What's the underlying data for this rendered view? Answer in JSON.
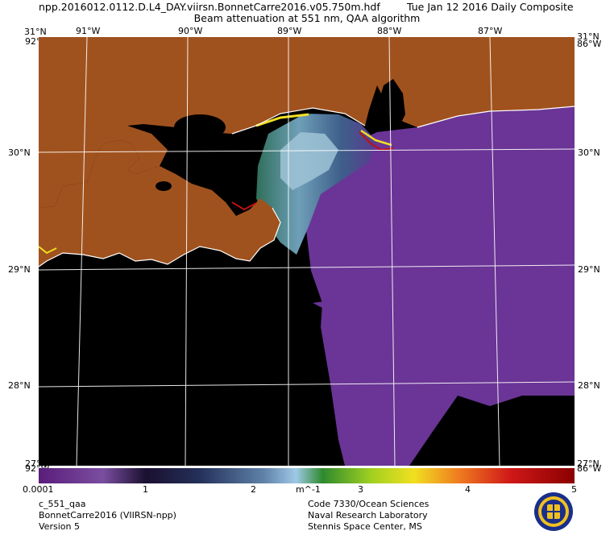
{
  "header": {
    "filename": "npp.2016012.0112.D.L4_DAY.viirsn.BonnetCarre2016.v05.750m.hdf",
    "date": "Tue Jan 12 2016 Daily Composite",
    "product": "Beam attenuation at 551 nm, QAA algorithm"
  },
  "map": {
    "lon_labels": [
      "91°W",
      "90°W",
      "89°W",
      "88°W",
      "87°W"
    ],
    "lat_labels": [
      "30°N",
      "29°N",
      "28°N"
    ],
    "corner_labels": {
      "top_left_lat": "31°N",
      "top_left_lon": "92°W",
      "top_right_lat": "31°N",
      "top_right_lon": "86°W",
      "bottom_left_lat": "27°N",
      "bottom_left_lon": "92°W",
      "bottom_right_lat": "27°N",
      "bottom_right_lon": "86°W"
    },
    "colors": {
      "land": "#a0521e",
      "no_data": "#000000",
      "offshore_water": "#6a3596",
      "coast": "#ffffff"
    }
  },
  "colorbar": {
    "ticks": [
      "0.0001",
      "1",
      "2",
      "3",
      "4",
      "5"
    ],
    "unit": "m^-1"
  },
  "footer": {
    "left": [
      "c_551_qaa",
      "BonnetCarre2016 (VIIRSN-npp)",
      "Version 5"
    ],
    "right": [
      "Code 7330/Ocean Sciences",
      "Naval Research Laboratory",
      "Stennis Space Center, MS"
    ]
  }
}
